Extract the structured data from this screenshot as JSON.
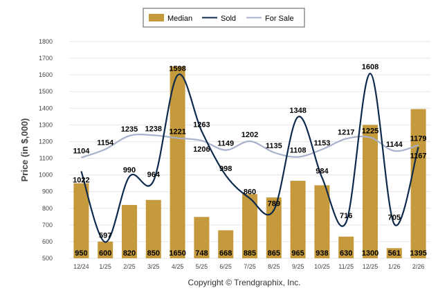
{
  "chart_data": {
    "type": "bar",
    "title": "",
    "ylabel": "Price (in $,000)",
    "xlabel": "",
    "ylim": [
      500,
      1800
    ],
    "yticks": [
      500,
      600,
      700,
      800,
      900,
      1000,
      1100,
      1200,
      1300,
      1400,
      1500,
      1600,
      1700,
      1800
    ],
    "categories": [
      "12/24",
      "1/25",
      "2/25",
      "3/25",
      "4/25",
      "5/25",
      "6/25",
      "7/25",
      "8/25",
      "9/25",
      "10/25",
      "11/25",
      "12/25",
      "1/26",
      "2/26"
    ],
    "series": [
      {
        "name": "Median",
        "type": "bar",
        "color": "#c49a3c",
        "values": [
          950,
          600,
          820,
          850,
          1650,
          748,
          668,
          885,
          865,
          965,
          938,
          630,
          1300,
          561,
          1395
        ]
      },
      {
        "name": "Sold",
        "type": "line",
        "color": "#0d2a4d",
        "values": [
          1022,
          597,
          990,
          964,
          1598,
          1263,
          998,
          860,
          789,
          1348,
          984,
          716,
          1608,
          705,
          1167
        ]
      },
      {
        "name": "For Sale",
        "type": "line",
        "color": "#a8b0cc",
        "values": [
          1104,
          1154,
          1235,
          1238,
          1221,
          1206,
          1149,
          1202,
          1135,
          1108,
          1153,
          1217,
          1225,
          1144,
          1179
        ]
      }
    ],
    "legend": "top-center",
    "grid": true
  },
  "footer": "Copyright © Trendgraphix, Inc."
}
